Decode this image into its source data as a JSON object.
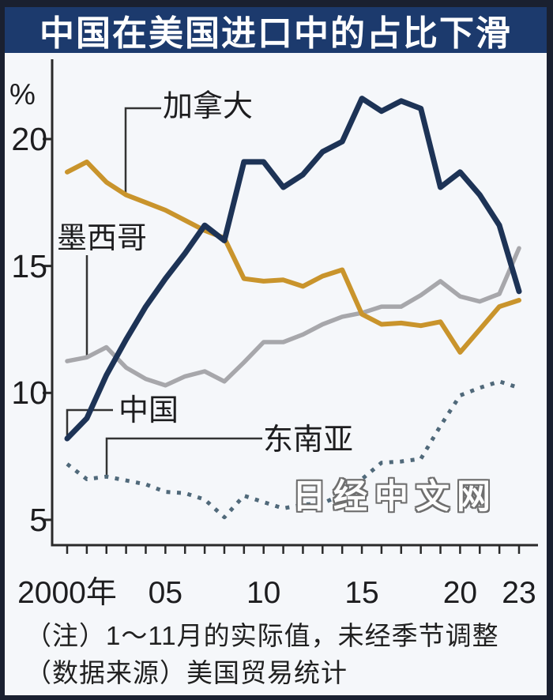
{
  "title": "中国在美国进口中的占比下滑",
  "watermark": "日经中文网",
  "notes": {
    "line1": "（注）1～11月的实际值，未经季节调整",
    "line2": "（数据来源）美国贸易统计"
  },
  "colors": {
    "frame": "#1a2030",
    "title_bar_bg": "#1c3a6d",
    "title_text": "#ffffff",
    "background": "#f5f7fa",
    "axis": "#2a2a2a",
    "china_line": "#1d3356",
    "canada_line": "#c9942c",
    "mexico_line": "#a7a7ab",
    "southeast_asia_line": "#50697a"
  },
  "chart_data": {
    "type": "line",
    "title": "中国在美国进口中的占比下滑",
    "ylabel": "%",
    "xlabel": "",
    "ylim": [
      4.0,
      23.1
    ],
    "grid": false,
    "legend_position": "inline-callouts",
    "yticks": [
      20,
      15,
      10,
      5
    ],
    "xticks": [
      {
        "label": "2000年",
        "year": 2000
      },
      {
        "label": "05",
        "year": 2005
      },
      {
        "label": "10",
        "year": 2010
      },
      {
        "label": "15",
        "year": 2015
      },
      {
        "label": "20",
        "year": 2020
      },
      {
        "label": "23",
        "year": 2023
      }
    ],
    "x": [
      2000,
      2001,
      2002,
      2003,
      2004,
      2005,
      2006,
      2007,
      2008,
      2009,
      2010,
      2011,
      2012,
      2013,
      2014,
      2015,
      2016,
      2017,
      2018,
      2019,
      2020,
      2021,
      2022,
      2023
    ],
    "series": [
      {
        "name": "中国",
        "color": "#1d3356",
        "style": "solid",
        "values": [
          8.2,
          9.0,
          10.7,
          12.1,
          13.4,
          14.5,
          15.5,
          16.6,
          16.0,
          19.1,
          19.1,
          18.1,
          18.6,
          19.5,
          19.9,
          21.6,
          21.1,
          21.5,
          21.2,
          18.1,
          18.7,
          17.8,
          16.6,
          14.0
        ]
      },
      {
        "name": "加拿大",
        "color": "#c9942c",
        "style": "solid",
        "values": [
          18.7,
          19.1,
          18.3,
          17.8,
          17.5,
          17.2,
          16.8,
          16.4,
          16.1,
          14.5,
          14.4,
          14.45,
          14.2,
          14.6,
          14.85,
          13.1,
          12.7,
          12.75,
          12.65,
          12.8,
          11.6,
          12.5,
          13.4,
          13.65
        ]
      },
      {
        "name": "墨西哥",
        "color": "#a7a7ab",
        "style": "solid",
        "values": [
          11.25,
          11.4,
          11.8,
          11.0,
          10.55,
          10.3,
          10.65,
          10.85,
          10.45,
          11.2,
          12.0,
          12.0,
          12.3,
          12.7,
          13.0,
          13.15,
          13.4,
          13.4,
          13.85,
          14.4,
          13.8,
          13.6,
          13.9,
          15.7
        ]
      },
      {
        "name": "东南亚",
        "color": "#50697a",
        "style": "dashed",
        "values": [
          7.2,
          6.6,
          6.7,
          6.55,
          6.4,
          6.1,
          6.05,
          5.8,
          5.1,
          5.95,
          5.7,
          5.45,
          5.6,
          5.65,
          6.0,
          6.6,
          7.25,
          7.3,
          7.4,
          8.7,
          9.9,
          10.2,
          10.45,
          10.2
        ]
      }
    ]
  }
}
